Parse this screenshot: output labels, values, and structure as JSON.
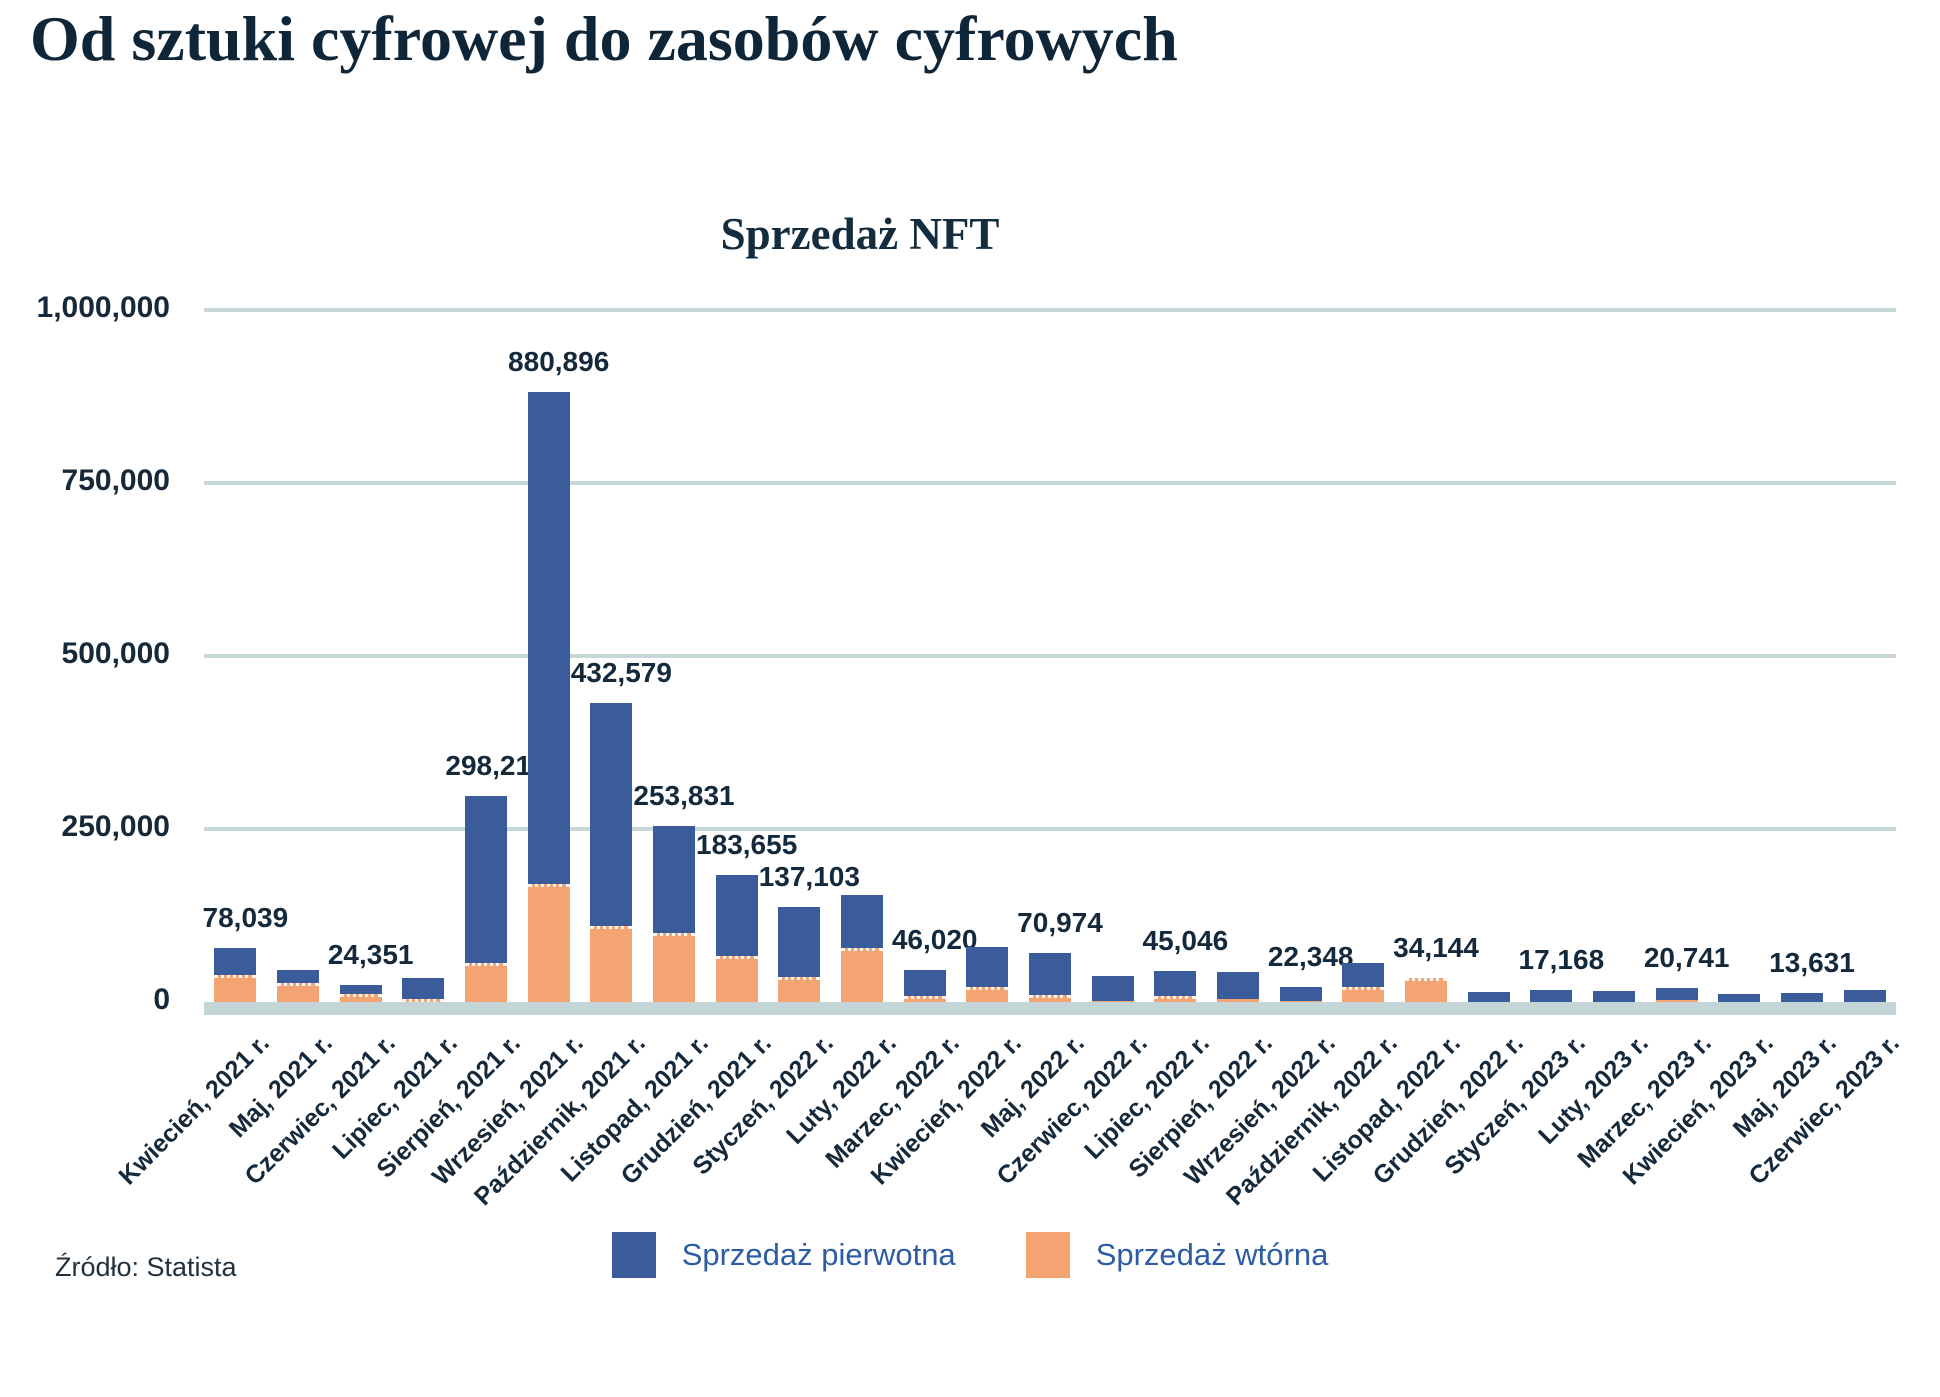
{
  "page_title": "Od sztuki cyfrowej do zasobów cyfrowych",
  "source": "Źródło: Statista",
  "colors": {
    "primary_series": "#3b5c9b",
    "secondary_series": "#f4a473",
    "gridline": "#c7d7d8",
    "axis_text": "#15293a",
    "value_label_text": "#14293c",
    "legend_text": "#2d5ca4",
    "title_text": "#0f2638"
  },
  "chart_data": {
    "type": "bar",
    "stacked": true,
    "title": "Sprzedaż NFT",
    "xlabel": "",
    "ylabel": "",
    "ylim": [
      0,
      1000000
    ],
    "y_ticks": [
      1000000,
      750000,
      500000,
      250000,
      0
    ],
    "y_tick_labels": [
      "1,000,000",
      "750,000",
      "500,000",
      "250,000",
      "0"
    ],
    "grid": true,
    "legend_position": "bottom",
    "categories": [
      "Kwiecień, 2021 r.",
      "Maj, 2021 r.",
      "Czerwiec, 2021 r.",
      "Lipiec, 2021 r.",
      "Sierpień, 2021 r.",
      "Wrzesień, 2021 r.",
      "Październik, 2021 r.",
      "Listopad, 2021 r.",
      "Grudzień, 2021 r.",
      "Styczeń, 2022 r.",
      "Luty, 2022 r.",
      "Marzec, 2022 r.",
      "Kwiecień, 2022 r.",
      "Maj, 2022 r.",
      "Czerwiec, 2022 r.",
      "Lipiec, 2022 r.",
      "Sierpień, 2022 r.",
      "Wrzesień, 2022 r.",
      "Październik, 2022 r.",
      "Listopad, 2022 r.",
      "Grudzień, 2022 r.",
      "Styczeń, 2023 r.",
      "Luty, 2023 r.",
      "Marzec, 2023 r.",
      "Kwiecień, 2023 r.",
      "Maj, 2023 r.",
      "Czerwiec, 2023 r."
    ],
    "series": [
      {
        "name": "Sprzedaż pierwotna",
        "color": "#3b5c9b",
        "values": [
          39039,
          18000,
          12851,
          29000,
          242210,
          710896,
          322579,
          153831,
          116655,
          101103,
          77000,
          38020,
          57000,
          60974,
          36000,
          37046,
          40000,
          20348,
          34000,
          0,
          15000,
          17168,
          15500,
          17741,
          12000,
          13631,
          17500
        ]
      },
      {
        "name": "Sprzedaż wtórna",
        "color": "#f4a473",
        "values": [
          39000,
          28000,
          11500,
          5000,
          56000,
          170000,
          110000,
          100000,
          67000,
          36000,
          78000,
          8000,
          22000,
          10000,
          2000,
          8000,
          4000,
          2000,
          22000,
          34144,
          0,
          0,
          0,
          3000,
          0,
          0,
          0
        ]
      }
    ],
    "totals": [
      78039,
      46000,
      24351,
      34000,
      298210,
      880896,
      432579,
      253831,
      183655,
      137103,
      155000,
      46020,
      79000,
      70974,
      38000,
      45046,
      44000,
      22348,
      56000,
      34144,
      15000,
      17168,
      15500,
      20741,
      12000,
      13631,
      17500
    ],
    "bar_value_labels": [
      "78,039",
      null,
      "24,351",
      null,
      "298,210",
      "880,896",
      "432,579",
      "253,831",
      "183,655",
      "137,103",
      null,
      "46,020",
      null,
      "70,974",
      null,
      "45,046",
      null,
      "22,348",
      null,
      "34,144",
      null,
      "17,168",
      null,
      "20,741",
      null,
      "13,631",
      null
    ]
  }
}
